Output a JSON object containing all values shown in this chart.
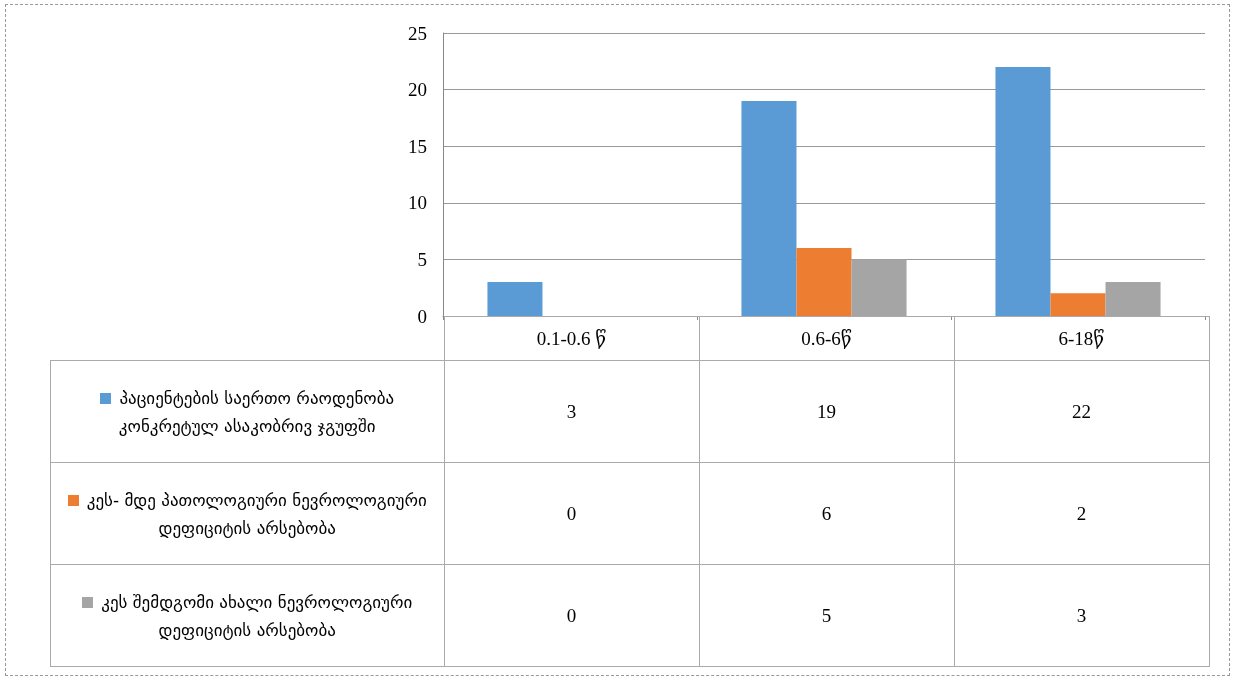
{
  "chart_data": {
    "type": "bar",
    "categories": [
      "0.1-0.6 წ",
      "0.6-6წ",
      "6-18წ"
    ],
    "series": [
      {
        "name": "პაციენტების საერთო რაოდენობა კონკრეტულ ასაკობრივ ჯგუფში",
        "color": "#5b9bd5",
        "values": [
          3,
          19,
          22
        ]
      },
      {
        "name": "კეს- მდე პათოლოგიური ნევროლოგიური დეფიციტის არსებობა",
        "color": "#ed7d31",
        "values": [
          0,
          6,
          2
        ]
      },
      {
        "name": "კეს შემდგომი ახალი ნევროლოგიური დეფიციტის არსებობა",
        "color": "#a5a5a5",
        "values": [
          0,
          5,
          3
        ]
      }
    ],
    "ylim": [
      0,
      25
    ],
    "yticks": [
      0,
      5,
      10,
      15,
      20,
      25
    ],
    "grid": "y",
    "legend": "bottom",
    "data_labels": true
  }
}
